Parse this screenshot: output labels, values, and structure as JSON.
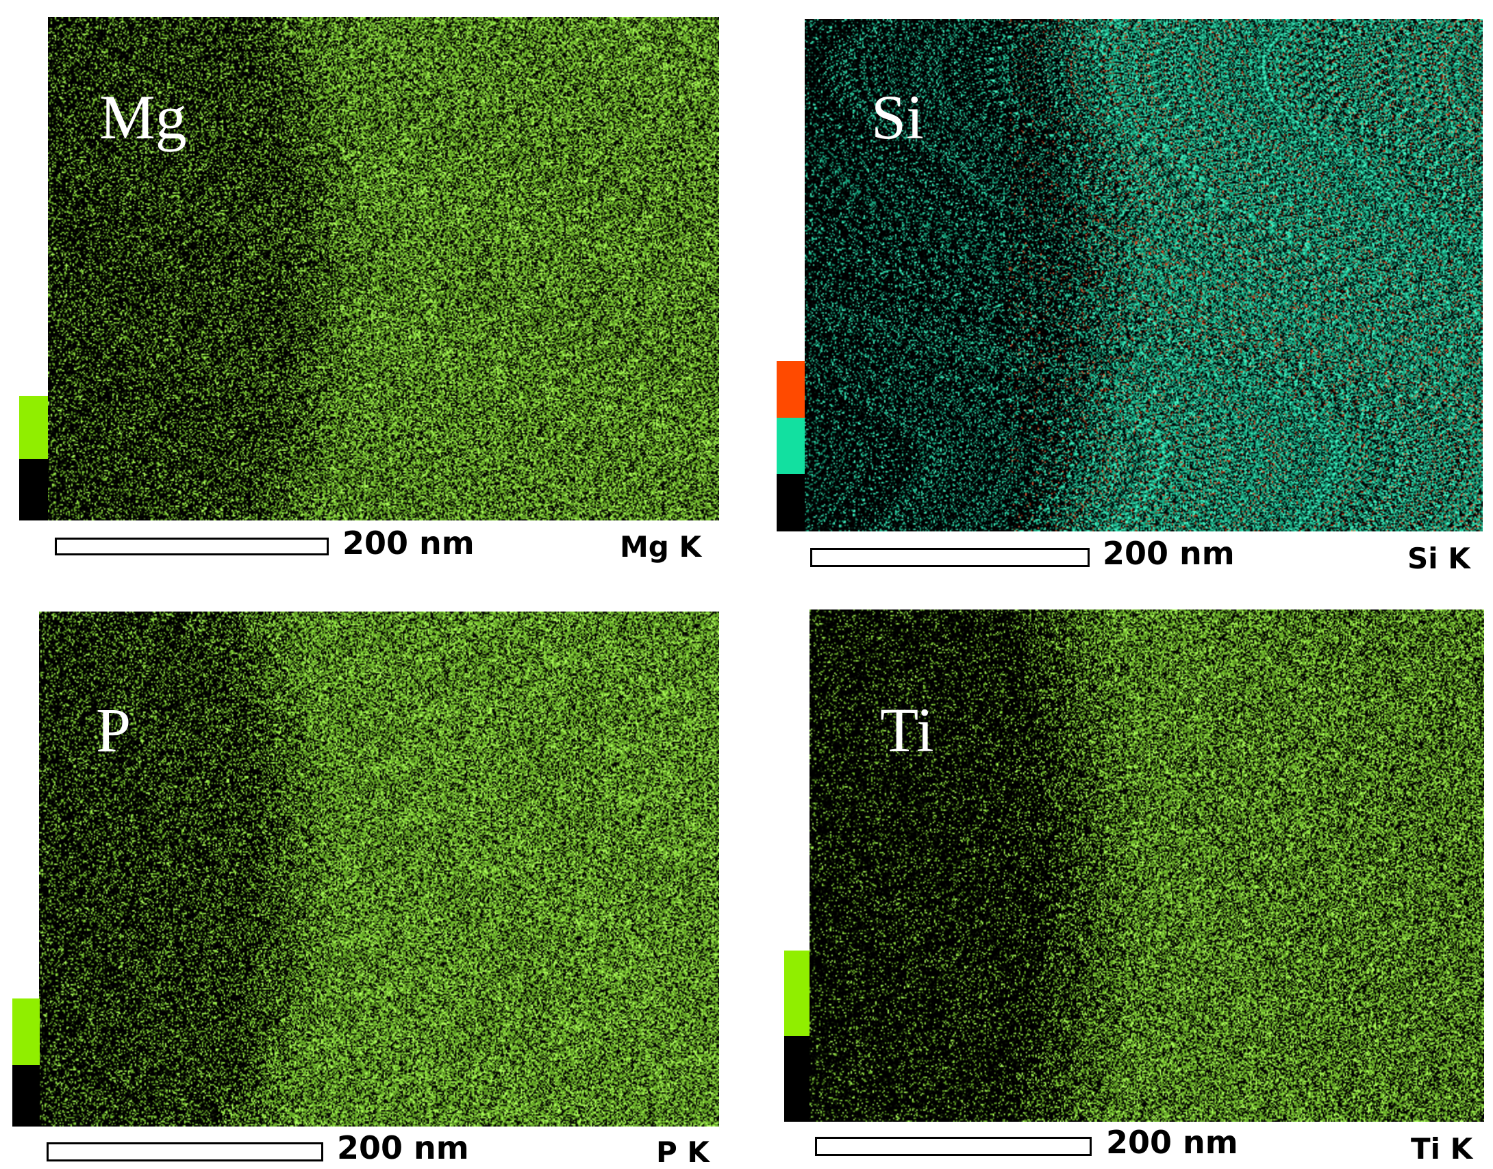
{
  "panels": [
    {
      "element": "Mg",
      "scale_label": "200 nm",
      "line_label": "Mg K",
      "legend_colors": [
        "#90ee00",
        "#000000"
      ],
      "map_colors": [
        "#8fe838"
      ]
    },
    {
      "element": "Si",
      "scale_label": "200 nm",
      "line_label": "Si K",
      "legend_colors": [
        "#ff4a00",
        "#12e0a0",
        "#000000"
      ],
      "map_colors": [
        "#22dcaa",
        "#e0441a"
      ]
    },
    {
      "element": "P",
      "scale_label": "200 nm",
      "line_label": "P K",
      "legend_colors": [
        "#90ee00",
        "#000000"
      ],
      "map_colors": [
        "#8fe838"
      ]
    },
    {
      "element": "Ti",
      "scale_label": "200 nm",
      "line_label": "Ti K",
      "legend_colors": [
        "#90ee00",
        "#000000"
      ],
      "map_colors": [
        "#8fe838"
      ]
    }
  ]
}
